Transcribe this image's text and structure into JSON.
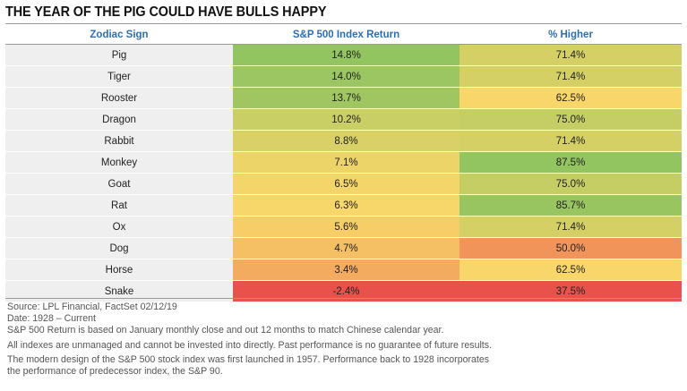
{
  "title": "THE YEAR OF THE PIG COULD HAVE BULLS HAPPY",
  "colors": {
    "header_text": "#2d6fae",
    "sign_cell_bg": "#efefef",
    "scale_low": "#e8524a",
    "scale_mid": "#f8d66a",
    "scale_high": "#92c460"
  },
  "chart_data": {
    "type": "table",
    "columns": [
      "Zodiac Sign",
      "S&P 500 Index Return",
      "% Higher"
    ],
    "rows": [
      {
        "sign": "Pig",
        "return": "14.8%",
        "higher": "71.4%"
      },
      {
        "sign": "Tiger",
        "return": "14.0%",
        "higher": "71.4%"
      },
      {
        "sign": "Rooster",
        "return": "13.7%",
        "higher": "62.5%"
      },
      {
        "sign": "Dragon",
        "return": "10.2%",
        "higher": "75.0%"
      },
      {
        "sign": "Rabbit",
        "return": "8.8%",
        "higher": "71.4%"
      },
      {
        "sign": "Monkey",
        "return": "7.1%",
        "higher": "87.5%"
      },
      {
        "sign": "Goat",
        "return": "6.5%",
        "higher": "75.0%"
      },
      {
        "sign": "Rat",
        "return": "6.3%",
        "higher": "85.7%"
      },
      {
        "sign": "Ox",
        "return": "5.6%",
        "higher": "71.4%"
      },
      {
        "sign": "Dog",
        "return": "4.7%",
        "higher": "50.0%"
      },
      {
        "sign": "Horse",
        "return": "3.4%",
        "higher": "62.5%"
      },
      {
        "sign": "Snake",
        "return": "-2.4%",
        "higher": "37.5%"
      }
    ]
  },
  "footnotes": [
    "Source: LPL Financial, FactSet 02/12/19",
    "Date: 1928 – Current",
    "S&P 500 Return is based on January monthly close and out 12 months to match Chinese calendar year.",
    "All indexes are unmanaged and cannot be invested into directly. Past performance is no guarantee of future results.",
    "The modern design of the S&P 500 stock index was first launched in 1957. Performance back to 1928 incorporates",
    "the performance of predecessor index, the S&P 90."
  ]
}
